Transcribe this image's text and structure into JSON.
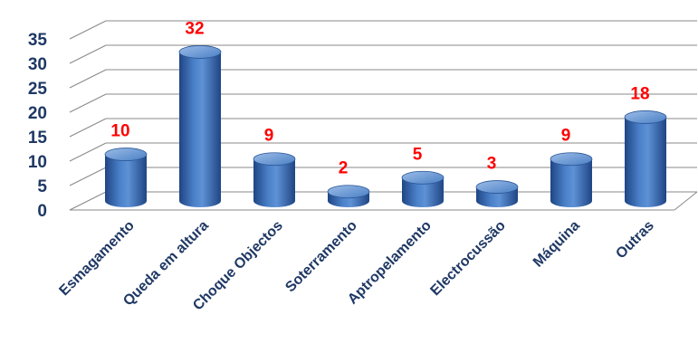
{
  "chart_data": {
    "type": "bar",
    "style": "3d-cylinder",
    "categories": [
      "Esmagamento",
      "Queda em altura",
      "Choque Objectos",
      "Soterramento",
      "Aptropelamento",
      "Electrocussão",
      "Máquina",
      "Outras"
    ],
    "values": [
      10,
      32,
      9,
      2,
      5,
      3,
      9,
      18
    ],
    "data_labels": [
      "10",
      "32",
      "9",
      "2",
      "5",
      "3",
      "9",
      "18"
    ],
    "y_ticks": [
      "0",
      "5",
      "10",
      "15",
      "20",
      "25",
      "30",
      "35"
    ],
    "ylim": [
      0,
      35
    ],
    "grid": true,
    "legend": "none",
    "colors": {
      "bar": "#3b6fb6",
      "bar_dark": "#1f4584",
      "bar_light": "#8fb3e3",
      "data_label": "#ff0000",
      "axis_text": "#1f3864",
      "grid": "#888888"
    }
  }
}
